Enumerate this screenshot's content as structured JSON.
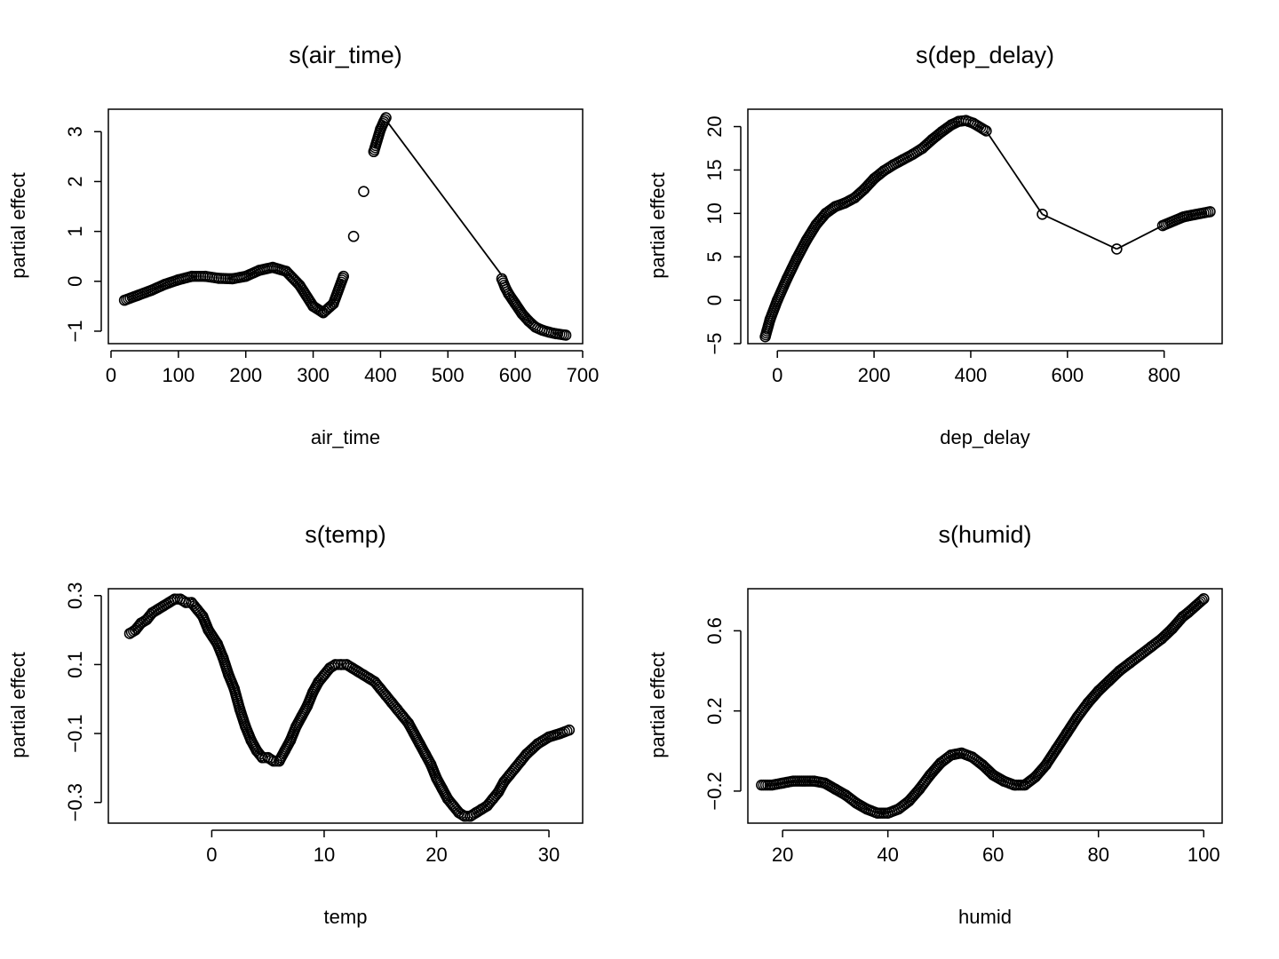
{
  "chart_data": [
    {
      "type": "scatter",
      "title": "s(air_time)",
      "xlabel": "air_time",
      "ylabel": "partial effect",
      "xlim": [
        0,
        700
      ],
      "ylim": [
        -1,
        3
      ],
      "xticks": [
        "0",
        "100",
        "200",
        "300",
        "400",
        "500",
        "600",
        "700"
      ],
      "yticks": [
        "−1",
        "0",
        "1",
        "2",
        "3"
      ],
      "grid": false,
      "connector_lines": [
        {
          "from": [
            410,
            3.2
          ],
          "to": [
            580,
            0.12
          ]
        }
      ],
      "series": [
        {
          "points": [
            [
              20,
              -0.38
            ],
            [
              40,
              -0.28
            ],
            [
              60,
              -0.18
            ],
            [
              80,
              -0.06
            ],
            [
              100,
              0.03
            ],
            [
              120,
              0.1
            ],
            [
              140,
              0.1
            ],
            [
              160,
              0.06
            ],
            [
              180,
              0.05
            ],
            [
              200,
              0.1
            ],
            [
              220,
              0.22
            ],
            [
              240,
              0.28
            ],
            [
              260,
              0.2
            ],
            [
              280,
              -0.08
            ],
            [
              300,
              -0.5
            ],
            [
              315,
              -0.63
            ],
            [
              330,
              -0.45
            ],
            [
              345,
              0.1
            ],
            [
              360,
              0.9
            ],
            [
              375,
              1.8
            ],
            [
              390,
              2.6
            ],
            [
              400,
              3.05
            ],
            [
              405,
              3.2
            ],
            [
              408,
              3.28
            ],
            [
              580,
              0.05
            ],
            [
              585,
              -0.12
            ],
            [
              590,
              -0.25
            ],
            [
              600,
              -0.45
            ],
            [
              610,
              -0.65
            ],
            [
              620,
              -0.8
            ],
            [
              630,
              -0.92
            ],
            [
              640,
              -0.98
            ],
            [
              650,
              -1.02
            ],
            [
              660,
              -1.05
            ],
            [
              675,
              -1.08
            ]
          ]
        }
      ]
    },
    {
      "type": "scatter",
      "title": "s(dep_delay)",
      "xlabel": "dep_delay",
      "ylabel": "partial effect",
      "xlim": [
        -30,
        900
      ],
      "ylim": [
        -5,
        20
      ],
      "xticks": [
        "0",
        "200",
        "400",
        "600",
        "800"
      ],
      "yticks": [
        "−5",
        "0",
        "5",
        "10",
        "15",
        "20"
      ],
      "grid": false,
      "connector_lines": [
        {
          "from": [
            432,
            19.5
          ],
          "to": [
            548,
            9.9
          ]
        },
        {
          "from": [
            548,
            9.9
          ],
          "to": [
            702,
            5.9
          ]
        },
        {
          "from": [
            702,
            5.9
          ],
          "to": [
            797,
            8.6
          ]
        }
      ],
      "series": [
        {
          "points": [
            [
              -25,
              -4.2
            ],
            [
              -15,
              -2.2
            ],
            [
              0,
              0
            ],
            [
              20,
              2.5
            ],
            [
              40,
              4.8
            ],
            [
              60,
              6.9
            ],
            [
              80,
              8.7
            ],
            [
              100,
              10.0
            ],
            [
              120,
              10.8
            ],
            [
              140,
              11.2
            ],
            [
              160,
              11.8
            ],
            [
              180,
              12.8
            ],
            [
              200,
              14.0
            ],
            [
              220,
              14.9
            ],
            [
              240,
              15.6
            ],
            [
              260,
              16.2
            ],
            [
              280,
              16.8
            ],
            [
              300,
              17.5
            ],
            [
              320,
              18.5
            ],
            [
              340,
              19.4
            ],
            [
              360,
              20.2
            ],
            [
              375,
              20.6
            ],
            [
              390,
              20.7
            ],
            [
              405,
              20.4
            ],
            [
              432,
              19.5
            ],
            [
              548,
              9.9
            ],
            [
              702,
              5.9
            ],
            [
              797,
              8.6
            ],
            [
              840,
              9.6
            ],
            [
              848,
              9.7
            ],
            [
              895,
              10.2
            ]
          ]
        }
      ]
    },
    {
      "type": "scatter",
      "title": "s(temp)",
      "xlabel": "temp",
      "ylabel": "partial effect",
      "xlim": [
        -8,
        32
      ],
      "ylim": [
        -0.3,
        0.3
      ],
      "xticks": [
        "0",
        "10",
        "20",
        "30"
      ],
      "yticks": [
        "−0.3",
        "−0.1",
        "0.1",
        "0.3"
      ],
      "grid": false,
      "series": [
        {
          "points": [
            [
              -7.3,
              0.19
            ],
            [
              -6.8,
              0.2
            ],
            [
              -6.3,
              0.22
            ],
            [
              -5.8,
              0.23
            ],
            [
              -5.3,
              0.25
            ],
            [
              -4.8,
              0.26
            ],
            [
              -4.3,
              0.27
            ],
            [
              -3.8,
              0.28
            ],
            [
              -3.3,
              0.29
            ],
            [
              -2.8,
              0.29
            ],
            [
              -2.3,
              0.28
            ],
            [
              -1.8,
              0.28
            ],
            [
              -1.3,
              0.26
            ],
            [
              -0.8,
              0.24
            ],
            [
              -0.3,
              0.2
            ],
            [
              0.5,
              0.16
            ],
            [
              1.0,
              0.12
            ],
            [
              1.5,
              0.07
            ],
            [
              2.0,
              0.03
            ],
            [
              2.5,
              -0.03
            ],
            [
              3.0,
              -0.08
            ],
            [
              3.5,
              -0.12
            ],
            [
              4.0,
              -0.15
            ],
            [
              4.5,
              -0.17
            ],
            [
              5.0,
              -0.17
            ],
            [
              5.5,
              -0.18
            ],
            [
              6.0,
              -0.18
            ],
            [
              6.5,
              -0.15
            ],
            [
              7.0,
              -0.12
            ],
            [
              7.5,
              -0.08
            ],
            [
              8.0,
              -0.05
            ],
            [
              8.5,
              -0.02
            ],
            [
              9.0,
              0.02
            ],
            [
              9.5,
              0.05
            ],
            [
              10.0,
              0.07
            ],
            [
              10.5,
              0.09
            ],
            [
              11.0,
              0.1
            ],
            [
              11.5,
              0.1
            ],
            [
              12.0,
              0.1
            ],
            [
              12.5,
              0.09
            ],
            [
              13.0,
              0.08
            ],
            [
              13.5,
              0.07
            ],
            [
              14.0,
              0.06
            ],
            [
              14.5,
              0.05
            ],
            [
              15.0,
              0.03
            ],
            [
              15.5,
              0.01
            ],
            [
              16.0,
              -0.01
            ],
            [
              16.5,
              -0.03
            ],
            [
              17.0,
              -0.05
            ],
            [
              17.5,
              -0.07
            ],
            [
              18.0,
              -0.1
            ],
            [
              18.5,
              -0.13
            ],
            [
              19.0,
              -0.16
            ],
            [
              19.5,
              -0.19
            ],
            [
              20.0,
              -0.23
            ],
            [
              20.5,
              -0.26
            ],
            [
              21.0,
              -0.29
            ],
            [
              21.5,
              -0.31
            ],
            [
              22.0,
              -0.33
            ],
            [
              22.5,
              -0.34
            ],
            [
              23.0,
              -0.34
            ],
            [
              23.5,
              -0.33
            ],
            [
              24.0,
              -0.32
            ],
            [
              24.5,
              -0.31
            ],
            [
              25.0,
              -0.29
            ],
            [
              25.5,
              -0.27
            ],
            [
              26.0,
              -0.24
            ],
            [
              26.5,
              -0.22
            ],
            [
              27.0,
              -0.2
            ],
            [
              27.5,
              -0.18
            ],
            [
              28.0,
              -0.16
            ],
            [
              29.0,
              -0.13
            ],
            [
              30.0,
              -0.11
            ],
            [
              31.0,
              -0.1
            ],
            [
              31.8,
              -0.09
            ]
          ]
        }
      ]
    },
    {
      "type": "scatter",
      "title": "s(humid)",
      "xlabel": "humid",
      "ylabel": "partial effect",
      "xlim": [
        16,
        100
      ],
      "ylim": [
        -0.2,
        0.8
      ],
      "xticks": [
        "20",
        "40",
        "60",
        "80",
        "100"
      ],
      "yticks": [
        "−0.2",
        "0.2",
        "0.6"
      ],
      "grid": false,
      "series": [
        {
          "points": [
            [
              16,
              -0.17
            ],
            [
              18,
              -0.17
            ],
            [
              20,
              -0.16
            ],
            [
              22,
              -0.15
            ],
            [
              24,
              -0.15
            ],
            [
              26,
              -0.15
            ],
            [
              28,
              -0.16
            ],
            [
              30,
              -0.19
            ],
            [
              32,
              -0.22
            ],
            [
              34,
              -0.26
            ],
            [
              36,
              -0.29
            ],
            [
              38,
              -0.31
            ],
            [
              40,
              -0.31
            ],
            [
              42,
              -0.29
            ],
            [
              44,
              -0.25
            ],
            [
              46,
              -0.19
            ],
            [
              48,
              -0.12
            ],
            [
              50,
              -0.06
            ],
            [
              52,
              -0.02
            ],
            [
              54,
              -0.01
            ],
            [
              56,
              -0.03
            ],
            [
              58,
              -0.07
            ],
            [
              60,
              -0.12
            ],
            [
              62,
              -0.15
            ],
            [
              64,
              -0.17
            ],
            [
              66,
              -0.17
            ],
            [
              68,
              -0.13
            ],
            [
              70,
              -0.07
            ],
            [
              72,
              0.01
            ],
            [
              74,
              0.09
            ],
            [
              76,
              0.17
            ],
            [
              78,
              0.24
            ],
            [
              80,
              0.3
            ],
            [
              82,
              0.35
            ],
            [
              84,
              0.4
            ],
            [
              86,
              0.44
            ],
            [
              88,
              0.48
            ],
            [
              90,
              0.52
            ],
            [
              92,
              0.56
            ],
            [
              94,
              0.61
            ],
            [
              96,
              0.67
            ],
            [
              97,
              0.69
            ],
            [
              100,
              0.76
            ]
          ]
        }
      ]
    }
  ]
}
